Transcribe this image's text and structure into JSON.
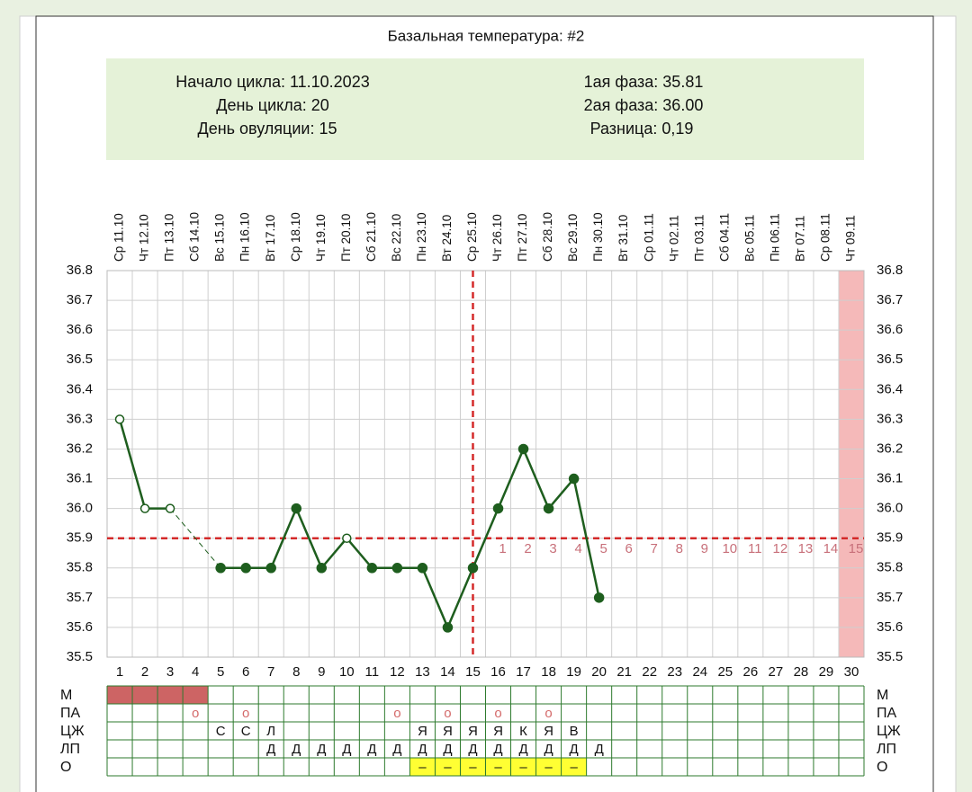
{
  "chart_data": {
    "type": "line",
    "title": "Базальная температура: #2",
    "info_left": [
      "Начало цикла: 11.10.2023",
      "День цикла: 20",
      "День овуляции: 15"
    ],
    "info_right": [
      "1ая фаза: 35.81",
      "2ая фаза: 36.00",
      "Разница: 0,19"
    ],
    "dates": [
      "Ср 11.10",
      "Чт 12.10",
      "Пт 13.10",
      "Сб 14.10",
      "Вс 15.10",
      "Пн 16.10",
      "Вт 17.10",
      "Ср 18.10",
      "Чт 19.10",
      "Пт 20.10",
      "Сб 21.10",
      "Вс 22.10",
      "Пн 23.10",
      "Вт 24.10",
      "Ср 25.10",
      "Чт 26.10",
      "Пт 27.10",
      "Сб 28.10",
      "Вс 29.10",
      "Пн 30.10",
      "Вт 31.10",
      "Ср 01.11",
      "Чт 02.11",
      "Пт 03.11",
      "Сб 04.11",
      "Вс 05.11",
      "Пн 06.11",
      "Вт 07.11",
      "Ср 08.11",
      "Чт 09.11"
    ],
    "days": [
      1,
      2,
      3,
      4,
      5,
      6,
      7,
      8,
      9,
      10,
      11,
      12,
      13,
      14,
      15,
      16,
      17,
      18,
      19,
      20,
      21,
      22,
      23,
      24,
      25,
      26,
      27,
      28,
      29,
      30
    ],
    "values": [
      36.3,
      36.0,
      36.0,
      null,
      35.8,
      35.8,
      35.8,
      36.0,
      35.8,
      35.9,
      35.8,
      35.8,
      35.8,
      35.6,
      35.8,
      36.0,
      36.2,
      36.0,
      36.1,
      35.7,
      null,
      null,
      null,
      null,
      null,
      null,
      null,
      null,
      null,
      null
    ],
    "markers": [
      "open",
      "open",
      "open",
      null,
      "filled",
      "filled",
      "filled",
      "filled",
      "filled",
      "open",
      "filled",
      "filled",
      "filled",
      "filled",
      "filled",
      "filled",
      "filled",
      "filled",
      "filled",
      "filled",
      null,
      null,
      null,
      null,
      null,
      null,
      null,
      null,
      null,
      null
    ],
    "gap_style": "dashed",
    "color": "#1e5e1e",
    "ylim": [
      35.5,
      36.8
    ],
    "yticks": [
      35.5,
      35.6,
      35.7,
      35.8,
      35.9,
      {
        "value": 36.0,
        "label": "36.0"
      },
      36.1,
      36.2,
      36.3,
      36.4,
      36.5,
      36.6,
      36.7,
      36.8
    ],
    "grid": true,
    "coverline": 35.9,
    "ovulation_day": 15,
    "reference_color": "#d42a2a",
    "highlight_day": 30,
    "highlight_color": "#f5b9b9",
    "phase2_labels": [
      1,
      2,
      3,
      4,
      5,
      6,
      7,
      8,
      9,
      10,
      11,
      12,
      13,
      14,
      15
    ],
    "phase2_color": "#c8707a",
    "table_rows": [
      {
        "label": "М",
        "cells": [
          null,
          null,
          null,
          null,
          null,
          null,
          null,
          null,
          null,
          null,
          null,
          null,
          null,
          null,
          null,
          null,
          null,
          null,
          null,
          null,
          null,
          null,
          null,
          null,
          null,
          null,
          null,
          null,
          null,
          null
        ],
        "highlight_days": [
          1,
          2,
          3,
          4
        ],
        "highlight_color": "#cd6464"
      },
      {
        "label": "ПА",
        "cells": [
          null,
          null,
          null,
          "о",
          null,
          "о",
          null,
          null,
          null,
          null,
          null,
          "о",
          null,
          "о",
          null,
          "о",
          null,
          "о",
          null,
          null,
          null,
          null,
          null,
          null,
          null,
          null,
          null,
          null,
          null,
          null
        ],
        "color": "#d46a6a"
      },
      {
        "label": "ЦЖ",
        "cells": [
          null,
          null,
          null,
          null,
          "С",
          "С",
          "Л",
          null,
          null,
          null,
          null,
          null,
          "Я",
          "Я",
          "Я",
          "Я",
          "К",
          "Я",
          "В",
          null,
          null,
          null,
          null,
          null,
          null,
          null,
          null,
          null,
          null,
          null
        ]
      },
      {
        "label": "ЛП",
        "cells": [
          null,
          null,
          null,
          null,
          null,
          null,
          "Д",
          "Д",
          "Д",
          "Д",
          "Д",
          "Д",
          "Д",
          "Д",
          "Д",
          "Д",
          "Д",
          "Д",
          "Д",
          "Д",
          null,
          null,
          null,
          null,
          null,
          null,
          null,
          null,
          null,
          null
        ]
      },
      {
        "label": "О",
        "cells": [
          null,
          null,
          null,
          null,
          null,
          null,
          null,
          null,
          null,
          null,
          null,
          null,
          "–",
          "–",
          "–",
          "–",
          "–",
          "–",
          "–",
          null,
          null,
          null,
          null,
          null,
          null,
          null,
          null,
          null,
          null,
          null
        ],
        "highlight_days": [
          13,
          14,
          15,
          16,
          17,
          18,
          19
        ],
        "highlight_color": "#ffff33"
      }
    ]
  }
}
